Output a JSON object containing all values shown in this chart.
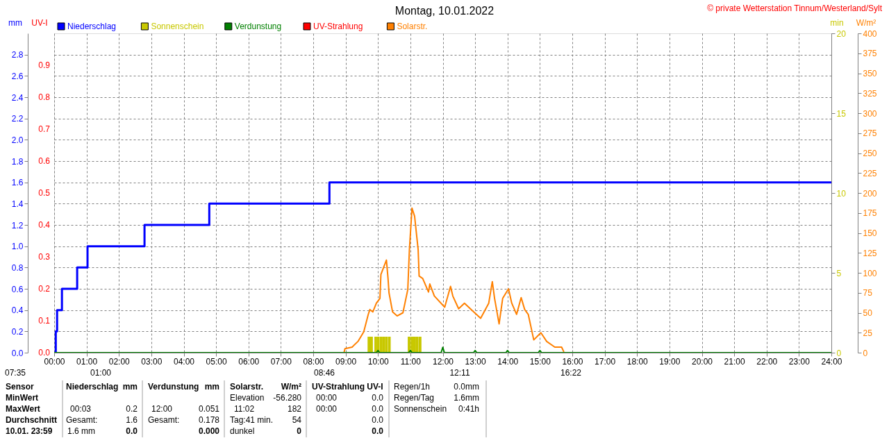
{
  "chart_data": {
    "type": "line",
    "title": "Montag, 10.01.2022",
    "ylabel": "mm",
    "y2label": "W/m²",
    "y3label": "min",
    "xlim": [
      0,
      24
    ],
    "xticks": [
      {
        "value": 0,
        "label": "00:00"
      },
      {
        "value": 1,
        "label": "01:00"
      },
      {
        "value": 2,
        "label": "02:00"
      },
      {
        "value": 3,
        "label": "03:00"
      },
      {
        "value": 4,
        "label": "04:00"
      },
      {
        "value": 5,
        "label": "05:00"
      },
      {
        "value": 6,
        "label": "06:00"
      },
      {
        "value": 7,
        "label": "07:00"
      },
      {
        "value": 8,
        "label": "08:00"
      },
      {
        "value": 9,
        "label": "09:00"
      },
      {
        "value": 10,
        "label": "10:00"
      },
      {
        "value": 11,
        "label": "11:00"
      },
      {
        "value": 12,
        "label": "12:00"
      },
      {
        "value": 13,
        "label": "13:00"
      },
      {
        "value": 14,
        "label": "14:00"
      },
      {
        "value": 15,
        "label": "15:00"
      },
      {
        "value": 16,
        "label": "16:00"
      },
      {
        "value": 17,
        "label": "17:00"
      },
      {
        "value": 18,
        "label": "18:00"
      },
      {
        "value": 19,
        "label": "19:00"
      },
      {
        "value": 20,
        "label": "20:00"
      },
      {
        "value": 21,
        "label": "21:00"
      },
      {
        "value": 22,
        "label": "22:00"
      },
      {
        "value": 23,
        "label": "23:00"
      },
      {
        "value": 24,
        "label": "24:00"
      }
    ],
    "ylim": [
      0,
      3
    ],
    "yticks": [
      {
        "value": 0,
        "label": "0.0"
      },
      0.2,
      0.4,
      0.6,
      0.8,
      {
        "value": 1,
        "label": "1.0"
      },
      1.2,
      1.4,
      1.6,
      1.8,
      {
        "value": 2,
        "label": "2.0"
      },
      2.2,
      2.4,
      2.6,
      2.8
    ],
    "y2lim": [
      0,
      400
    ],
    "y2ticks": [
      0,
      25,
      50,
      75,
      100,
      125,
      150,
      175,
      200,
      225,
      250,
      275,
      300,
      325,
      350,
      375,
      400
    ],
    "y3lim": [
      0,
      20
    ],
    "y3ticks": [
      0,
      5,
      10,
      15,
      20
    ],
    "grid": true,
    "legend": "top left",
    "series": [
      {
        "name": "Niederschlag",
        "type": "step",
        "color": "#0000ff",
        "x": [
          0,
          0.05,
          0.09,
          0.24,
          0.71,
          1.03,
          2.79,
          4.79,
          8.5,
          24
        ],
        "values": [
          0,
          0.2,
          0.4,
          0.6,
          0.8,
          1.0,
          1.2,
          1.4,
          1.6,
          1.6
        ]
      },
      {
        "name": "Sonnenschein",
        "type": "bar",
        "axis": "y3",
        "color": "#c8c800",
        "x": [
          9.72,
          9.8,
          9.93,
          10.01,
          10.1,
          10.18,
          10.26,
          10.35,
          10.96,
          11.05,
          11.13,
          11.21,
          11.3
        ],
        "values": [
          1,
          1,
          1,
          1,
          1,
          1,
          1,
          1,
          1,
          1,
          1,
          1,
          1
        ]
      },
      {
        "name": "Verdunstung",
        "color": "#008000",
        "x": [
          0,
          9.95,
          10,
          10.05,
          10.95,
          11,
          11.05,
          11.95,
          12,
          12.05,
          12.95,
          13,
          13.05,
          13.95,
          14,
          14.05,
          14.95,
          15,
          15.05,
          24
        ],
        "values": [
          0,
          0,
          0.02,
          0,
          0,
          0.02,
          0,
          0,
          0.05,
          0,
          0,
          0.02,
          0,
          0,
          0.02,
          0,
          0,
          0.02,
          0,
          0
        ]
      },
      {
        "name": "UV-Strahlung",
        "color": "#ff0000"
      },
      {
        "name": "Solarstr.",
        "axis": "y2",
        "color": "#ff8000",
        "x": [
          8.95,
          8.98,
          9.2,
          9.38,
          9.56,
          9.7,
          9.75,
          9.84,
          9.95,
          10.06,
          10.09,
          10.26,
          10.31,
          10.34,
          10.45,
          10.59,
          10.77,
          10.92,
          10.97,
          11.05,
          11.13,
          11.24,
          11.27,
          11.38,
          11.56,
          11.6,
          11.74,
          12.06,
          12.24,
          12.31,
          12.49,
          12.67,
          12.88,
          13.17,
          13.42,
          13.53,
          13.6,
          13.74,
          13.85,
          14.03,
          14.13,
          14.28,
          14.42,
          14.53,
          14.64,
          14.81,
          15.03,
          15.21,
          15.46,
          15.67,
          15.74
        ],
        "values": [
          0,
          5,
          7,
          14,
          26,
          48,
          54,
          51,
          62,
          68,
          98,
          116,
          93,
          75,
          51,
          46,
          50,
          79,
          129,
          181,
          171,
          129,
          96,
          93,
          76,
          86,
          71,
          57,
          83,
          71,
          55,
          62,
          54,
          43,
          62,
          89,
          68,
          36,
          68,
          80,
          62,
          48,
          69,
          54,
          48,
          16,
          25,
          14,
          7,
          7,
          1
        ]
      }
    ],
    "annotations": [
      "© private Wetterstation Tinnum/Westerland/Sylt",
      "07:35",
      "01:00",
      "08:46",
      "12:11",
      "16:22",
      "Sensor",
      "Niederschlag",
      "mm",
      "Verdunstung",
      "mm",
      "Solarstr.",
      "W/m²",
      "UV-Strahlung UV-I",
      "Regen/1h",
      "0.0mm",
      "MinWert",
      "Elevation",
      "-56.280",
      "00:00",
      "0.0",
      "Regen/Tag",
      "1.6mm",
      "MaxWert",
      "00:03",
      "0.2",
      "12:00",
      "0.051",
      "11:02",
      "182",
      "00:00",
      "0.0",
      "Sonnenschein",
      "0:41h",
      "Durchschnitt",
      "Gesamt:",
      "1.6",
      "Gesamt:",
      "0.178",
      "Tag:41 min.",
      "54",
      "0.0",
      "10.01. 23:59",
      "1.6 mm",
      "0.0",
      "0.000",
      "dunkel",
      "0",
      "0.0",
      "UV-I",
      "0.0",
      "0.1",
      "0.2",
      "0.3",
      "0.4",
      "0.5",
      "0.6",
      "0.7",
      "0.8",
      "0.9"
    ]
  }
}
